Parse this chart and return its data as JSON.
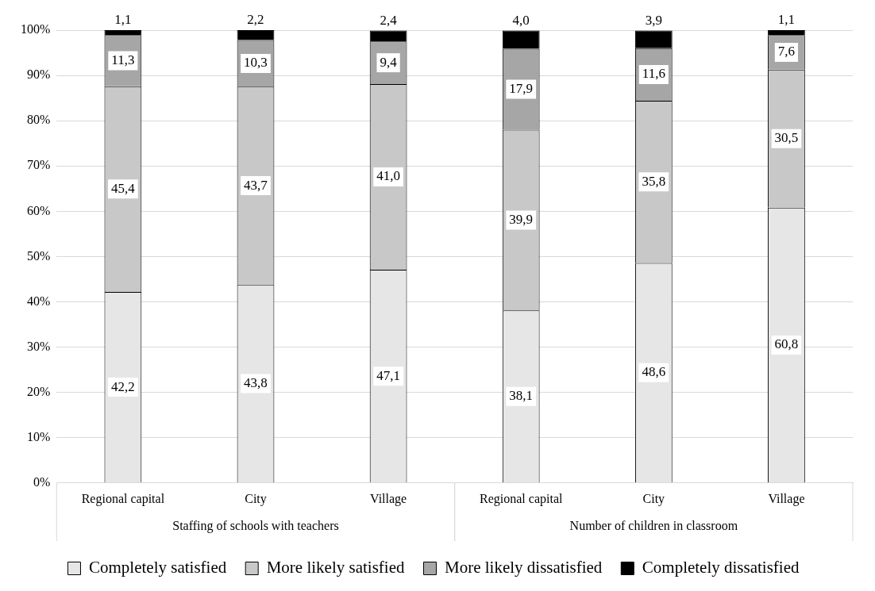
{
  "chart_data": {
    "type": "bar",
    "stacked": true,
    "categories": [
      "Regional capital",
      "City",
      "Village",
      "Regional capital",
      "City",
      "Village"
    ],
    "annotations": [
      "Staffing of schools with teachers",
      "Number of children in classroom"
    ],
    "series": [
      {
        "name": "Completely satisfied",
        "color": "#e6e6e6",
        "values": [
          42.2,
          43.8,
          47.1,
          38.1,
          48.6,
          60.8
        ],
        "value_labels": [
          "42,2",
          "43,8",
          "47,1",
          "38,1",
          "48,6",
          "60,8"
        ]
      },
      {
        "name": "More likely satisfied",
        "color": "#c8c8c8",
        "values": [
          45.4,
          43.7,
          41.0,
          39.9,
          35.8,
          30.5
        ],
        "value_labels": [
          "45,4",
          "43,7",
          "41,0",
          "39,9",
          "35,8",
          "30,5"
        ]
      },
      {
        "name": "More likely dissatisfied",
        "color": "#a6a6a6",
        "values": [
          11.3,
          10.3,
          9.4,
          17.9,
          11.6,
          7.6
        ],
        "value_labels": [
          "11,3",
          "10,3",
          "9,4",
          "17,9",
          "11,6",
          "7,6"
        ]
      },
      {
        "name": "Completely dissatisfied",
        "color": "#000000",
        "values": [
          1.1,
          2.2,
          2.4,
          4.0,
          3.9,
          1.1
        ],
        "value_labels": [
          "1,1",
          "2,2",
          "2,4",
          "4,0",
          "3,9",
          "1,1"
        ]
      }
    ],
    "ylim": [
      0,
      100
    ],
    "yticks": [
      {
        "value": 0,
        "label": "0%"
      },
      {
        "value": 10,
        "label": "10%"
      },
      {
        "value": 20,
        "label": "20%"
      },
      {
        "value": 30,
        "label": "30%"
      },
      {
        "value": 40,
        "label": "40%"
      },
      {
        "value": 50,
        "label": "50%"
      },
      {
        "value": 60,
        "label": "60%"
      },
      {
        "value": 70,
        "label": "70%"
      },
      {
        "value": 80,
        "label": "80%"
      },
      {
        "value": 90,
        "label": "90%"
      },
      {
        "value": 100,
        "label": "100%"
      }
    ],
    "grid": "y",
    "legend": "bottom"
  }
}
